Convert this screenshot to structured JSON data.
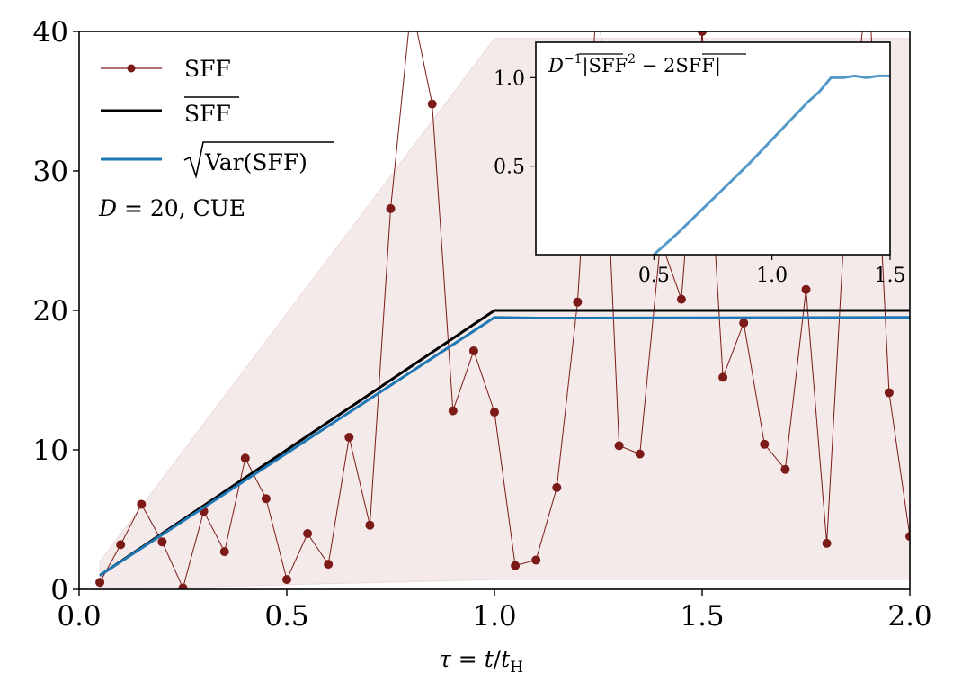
{
  "chart_data": [
    {
      "type": "line",
      "xlabel": "τ = t/t_H",
      "xlabel_parts": {
        "main": "τ = t/t",
        "sub": "H"
      },
      "ylabel": "",
      "xlim": [
        0.0,
        2.0
      ],
      "ylim": [
        0,
        40
      ],
      "x_ticks": [
        0.0,
        0.5,
        1.0,
        1.5,
        2.0
      ],
      "x_tick_labels": [
        "0.0",
        "0.5",
        "1.0",
        "1.5",
        "2.0"
      ],
      "y_ticks": [
        0,
        10,
        20,
        30,
        40
      ],
      "y_tick_labels": [
        "0",
        "10",
        "20",
        "30",
        "40"
      ],
      "grid": false,
      "legend_position": "top-left",
      "annotation": "D = 20, CUE",
      "series": [
        {
          "name": "SFF",
          "style": "line-markers",
          "color": "#7b1a17",
          "x": [
            0.05,
            0.1,
            0.15,
            0.2,
            0.25,
            0.3,
            0.35,
            0.4,
            0.45,
            0.5,
            0.55,
            0.6,
            0.65,
            0.7,
            0.75,
            0.8,
            0.85,
            0.9,
            0.95,
            1.0,
            1.05,
            1.1,
            1.15,
            1.2,
            1.25,
            1.3,
            1.35,
            1.4,
            1.45,
            1.5,
            1.55,
            1.6,
            1.65,
            1.7,
            1.75,
            1.8,
            1.85,
            1.9,
            1.95,
            2.0
          ],
          "y": [
            0.5,
            3.2,
            6.1,
            3.4,
            0.1,
            5.6,
            2.7,
            9.4,
            6.5,
            0.7,
            4.0,
            1.8,
            10.9,
            4.6,
            27.3,
            42.0,
            34.8,
            12.8,
            17.1,
            12.7,
            1.7,
            2.1,
            7.3,
            20.6,
            44.0,
            10.3,
            9.7,
            25.0,
            20.8,
            40.0,
            15.2,
            19.1,
            10.4,
            8.6,
            21.5,
            3.3,
            30.0,
            44.0,
            14.1,
            3.8
          ]
        },
        {
          "name": "SFF (mean)",
          "style": "line",
          "color": "#000000",
          "x": [
            0.05,
            1.0,
            2.0
          ],
          "y": [
            1.0,
            20.0,
            20.0
          ]
        },
        {
          "name": "√Var(SFF)",
          "style": "line",
          "color": "#1f77b4",
          "x": [
            0.05,
            1.0,
            1.1,
            2.0
          ],
          "y": [
            1.0,
            19.5,
            19.45,
            19.5
          ]
        },
        {
          "name": "band",
          "style": "fill",
          "color": "#f5eaea",
          "x": [
            0.05,
            1.0,
            1.05,
            2.0
          ],
          "y_upper": [
            2.0,
            39.5,
            39.5,
            39.5
          ],
          "y_lower": [
            0.0,
            0.7,
            0.7,
            0.7
          ]
        }
      ]
    },
    {
      "type": "line",
      "title": "D⁻¹|SFF² − 2SFF|",
      "title_parts": {
        "prefix": "D",
        "exp": "−1",
        "bar1": "SFF",
        "sq": "2",
        "mid": " − 2",
        "bar2": "SFF"
      },
      "xlim": [
        0.0,
        1.5
      ],
      "ylim": [
        0.0,
        1.2
      ],
      "x_ticks": [
        0.5,
        1.0,
        1.5
      ],
      "x_tick_labels": [
        "0.5",
        "1.0",
        "1.5"
      ],
      "y_ticks": [
        0.5,
        1.0
      ],
      "y_tick_labels": [
        "0.5",
        "1.0"
      ],
      "series": [
        {
          "name": "inset",
          "color": "#5599c8",
          "x": [
            0.5,
            0.6,
            0.7,
            0.8,
            0.9,
            0.95,
            1.0,
            1.05,
            1.1,
            1.15,
            1.2,
            1.25,
            1.3,
            1.35,
            1.4,
            1.45,
            1.5
          ],
          "y": [
            0.0,
            0.12,
            0.25,
            0.38,
            0.51,
            0.58,
            0.65,
            0.72,
            0.79,
            0.86,
            0.92,
            1.0,
            1.0,
            1.01,
            1.0,
            1.01,
            1.01
          ]
        }
      ]
    }
  ],
  "legend": {
    "sff": "SFF",
    "mean": "SFF",
    "std_prefix": "Var(SFF)"
  }
}
